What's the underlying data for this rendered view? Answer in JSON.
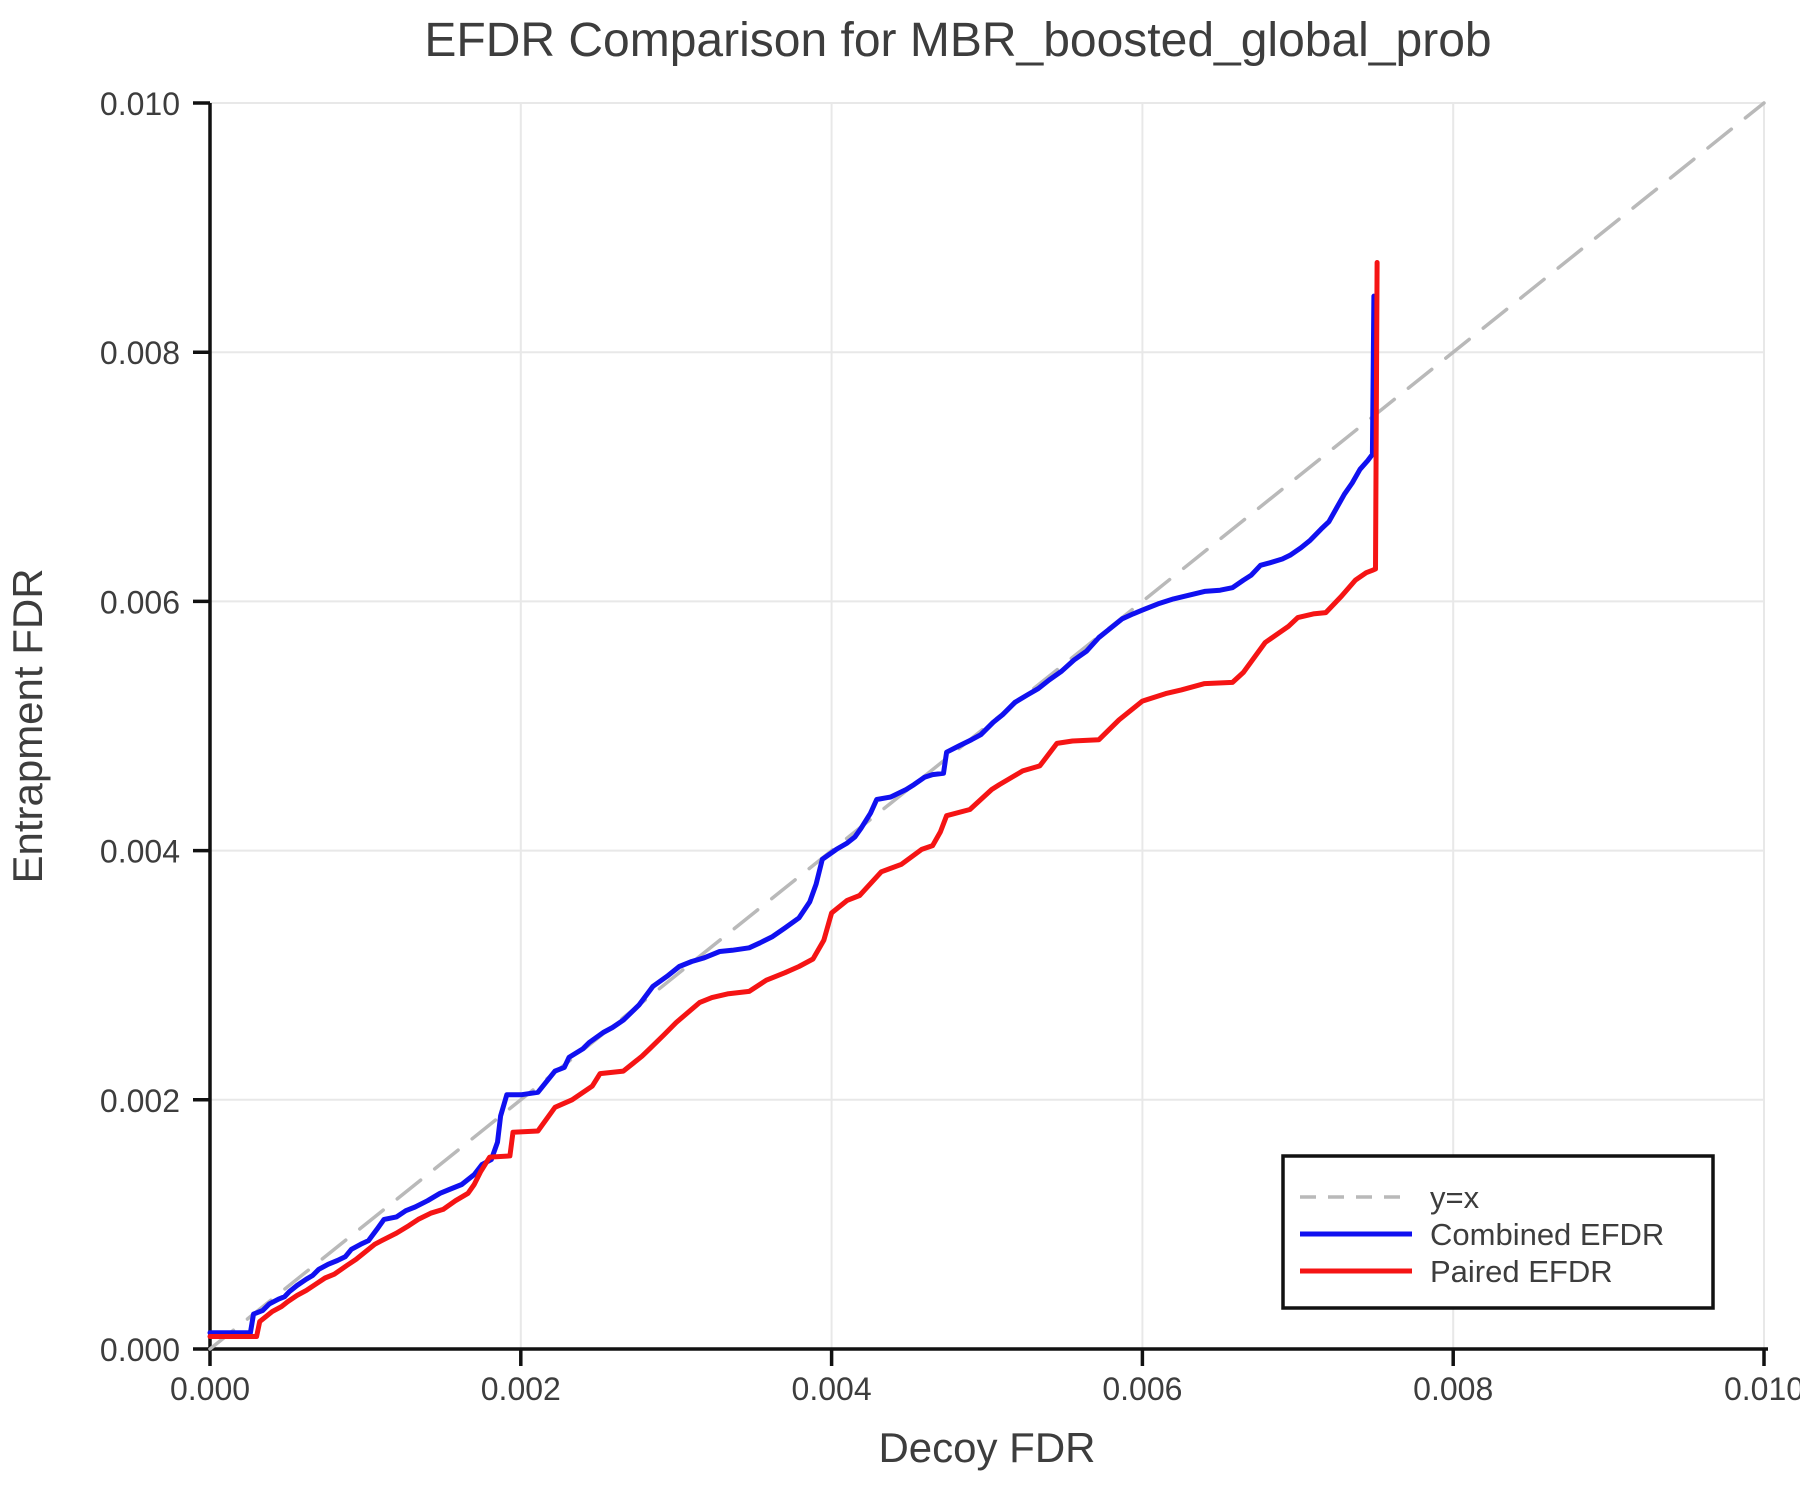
{
  "title": "EFDR Comparison for MBR_boosted_global_prob",
  "axes": {
    "xlabel": "Decoy FDR",
    "ylabel": "Entrapment FDR",
    "xtick_labels": [
      "0.000",
      "0.002",
      "0.004",
      "0.006",
      "0.008",
      "0.010"
    ],
    "ytick_labels": [
      "0.000",
      "0.002",
      "0.004",
      "0.006",
      "0.008",
      "0.010"
    ]
  },
  "legend": {
    "items": [
      {
        "label": "y=x",
        "color": "#b9b9b9",
        "dashed": true
      },
      {
        "label": "Combined EFDR",
        "color": "#1010f0",
        "dashed": false
      },
      {
        "label": "Paired EFDR",
        "color": "#f51414",
        "dashed": false
      }
    ]
  },
  "colors": {
    "grid": "#e8e8e8",
    "spine": "#111111",
    "text": "#3d3d3d",
    "identity_line": "#b9b9b9",
    "combined": "#1010f0",
    "paired": "#f51414"
  },
  "chart_data": {
    "type": "line",
    "title": "EFDR Comparison for MBR_boosted_global_prob",
    "xlabel": "Decoy FDR",
    "ylabel": "Entrapment FDR",
    "xlim": [
      0.0,
      0.01
    ],
    "ylim": [
      0.0,
      0.01
    ],
    "xticks": [
      0.0,
      0.002,
      0.004,
      0.006,
      0.008,
      0.01
    ],
    "yticks": [
      0.0,
      0.002,
      0.004,
      0.006,
      0.008,
      0.01
    ],
    "grid": true,
    "legend_position": "lower right",
    "points_scale": 0.0001,
    "series": [
      {
        "name": "y=x",
        "color": "#b9b9b9",
        "style": "dashed",
        "points": [
          [
            0,
            0
          ],
          [
            100,
            100
          ]
        ]
      },
      {
        "name": "Combined EFDR",
        "color": "#1010f0",
        "style": "solid",
        "points": [
          [
            0,
            1.3
          ],
          [
            2.6,
            1.3
          ],
          [
            2.8,
            2.8
          ],
          [
            3.4,
            3.1
          ],
          [
            3.8,
            3.6
          ],
          [
            4.4,
            4.0
          ],
          [
            4.8,
            4.2
          ],
          [
            5.1,
            4.6
          ],
          [
            5.6,
            5.1
          ],
          [
            6.2,
            5.6
          ],
          [
            6.6,
            5.9
          ],
          [
            7.0,
            6.4
          ],
          [
            7.6,
            6.8
          ],
          [
            8.2,
            7.1
          ],
          [
            8.7,
            7.4
          ],
          [
            9.1,
            8.0
          ],
          [
            9.7,
            8.4
          ],
          [
            10.2,
            8.7
          ],
          [
            10.8,
            9.7
          ],
          [
            11.2,
            10.4
          ],
          [
            12.0,
            10.6
          ],
          [
            12.6,
            11.1
          ],
          [
            13.2,
            11.4
          ],
          [
            14.0,
            11.9
          ],
          [
            14.8,
            12.5
          ],
          [
            15.4,
            12.8
          ],
          [
            16.2,
            13.2
          ],
          [
            17.0,
            14.0
          ],
          [
            17.5,
            14.8
          ],
          [
            18.1,
            15.2
          ],
          [
            18.5,
            16.6
          ],
          [
            18.7,
            18.7
          ],
          [
            19.1,
            20.4
          ],
          [
            20.0,
            20.4
          ],
          [
            21.1,
            20.6
          ],
          [
            22.2,
            22.3
          ],
          [
            22.8,
            22.6
          ],
          [
            23.1,
            23.4
          ],
          [
            24.0,
            24.1
          ],
          [
            24.4,
            24.6
          ],
          [
            25.3,
            25.4
          ],
          [
            25.9,
            25.8
          ],
          [
            26.6,
            26.4
          ],
          [
            27.6,
            27.6
          ],
          [
            28.5,
            29.1
          ],
          [
            29.4,
            29.9
          ],
          [
            30.2,
            30.7
          ],
          [
            31.0,
            31.1
          ],
          [
            31.8,
            31.4
          ],
          [
            32.8,
            31.9
          ],
          [
            33.6,
            32.0
          ],
          [
            34.7,
            32.2
          ],
          [
            35.4,
            32.6
          ],
          [
            36.2,
            33.1
          ],
          [
            37.0,
            33.8
          ],
          [
            37.9,
            34.6
          ],
          [
            38.6,
            35.9
          ],
          [
            39.0,
            37.3
          ],
          [
            39.4,
            39.3
          ],
          [
            40.3,
            40.1
          ],
          [
            41.0,
            40.6
          ],
          [
            41.5,
            41.1
          ],
          [
            41.9,
            41.8
          ],
          [
            42.5,
            43.0
          ],
          [
            42.9,
            44.1
          ],
          [
            43.8,
            44.3
          ],
          [
            44.8,
            44.9
          ],
          [
            45.3,
            45.3
          ],
          [
            46.0,
            45.9
          ],
          [
            46.5,
            46.1
          ],
          [
            47.2,
            46.2
          ],
          [
            47.4,
            47.9
          ],
          [
            48.2,
            48.4
          ],
          [
            49.0,
            48.9
          ],
          [
            49.6,
            49.3
          ],
          [
            50.4,
            50.3
          ],
          [
            51.0,
            50.9
          ],
          [
            51.8,
            51.9
          ],
          [
            52.6,
            52.5
          ],
          [
            53.3,
            53.0
          ],
          [
            54.0,
            53.7
          ],
          [
            54.8,
            54.4
          ],
          [
            55.6,
            55.3
          ],
          [
            56.4,
            56.0
          ],
          [
            57.2,
            57.1
          ],
          [
            58.0,
            57.9
          ],
          [
            58.7,
            58.6
          ],
          [
            59.4,
            59.0
          ],
          [
            60.0,
            59.3
          ],
          [
            61.0,
            59.8
          ],
          [
            62.0,
            60.2
          ],
          [
            63.0,
            60.5
          ],
          [
            64.0,
            60.8
          ],
          [
            65.0,
            60.9
          ],
          [
            65.8,
            61.1
          ],
          [
            66.5,
            61.7
          ],
          [
            67.0,
            62.1
          ],
          [
            67.6,
            62.9
          ],
          [
            68.2,
            63.1
          ],
          [
            69.0,
            63.4
          ],
          [
            69.5,
            63.7
          ],
          [
            70.2,
            64.3
          ],
          [
            70.8,
            64.9
          ],
          [
            71.5,
            65.8
          ],
          [
            72.0,
            66.4
          ],
          [
            72.5,
            67.5
          ],
          [
            73.0,
            68.6
          ],
          [
            73.5,
            69.5
          ],
          [
            74.0,
            70.6
          ],
          [
            74.5,
            71.3
          ],
          [
            74.8,
            71.8
          ],
          [
            74.9,
            84.5
          ]
        ]
      },
      {
        "name": "Paired EFDR",
        "color": "#f51414",
        "style": "solid",
        "points": [
          [
            0,
            1.0
          ],
          [
            3.0,
            1.0
          ],
          [
            3.2,
            2.2
          ],
          [
            4.0,
            3.0
          ],
          [
            4.6,
            3.4
          ],
          [
            5.0,
            3.8
          ],
          [
            5.6,
            4.3
          ],
          [
            6.2,
            4.7
          ],
          [
            6.8,
            5.2
          ],
          [
            7.4,
            5.7
          ],
          [
            8.0,
            6.0
          ],
          [
            8.8,
            6.7
          ],
          [
            9.4,
            7.2
          ],
          [
            10.0,
            7.8
          ],
          [
            10.6,
            8.4
          ],
          [
            11.2,
            8.8
          ],
          [
            12.0,
            9.3
          ],
          [
            12.8,
            9.9
          ],
          [
            13.4,
            10.4
          ],
          [
            14.2,
            10.9
          ],
          [
            15.0,
            11.2
          ],
          [
            15.8,
            11.9
          ],
          [
            16.6,
            12.5
          ],
          [
            17.0,
            13.2
          ],
          [
            17.4,
            14.2
          ],
          [
            18.0,
            15.4
          ],
          [
            19.3,
            15.5
          ],
          [
            19.5,
            17.4
          ],
          [
            21.1,
            17.5
          ],
          [
            22.2,
            19.4
          ],
          [
            23.3,
            20.0
          ],
          [
            24.6,
            21.1
          ],
          [
            25.1,
            22.1
          ],
          [
            26.6,
            22.3
          ],
          [
            27.8,
            23.5
          ],
          [
            28.3,
            24.1
          ],
          [
            29.2,
            25.2
          ],
          [
            30.0,
            26.2
          ],
          [
            31.5,
            27.8
          ],
          [
            32.3,
            28.2
          ],
          [
            33.3,
            28.5
          ],
          [
            34.7,
            28.7
          ],
          [
            35.8,
            29.6
          ],
          [
            37.0,
            30.2
          ],
          [
            37.9,
            30.7
          ],
          [
            38.8,
            31.3
          ],
          [
            39.5,
            32.8
          ],
          [
            40.0,
            35.0
          ],
          [
            41.0,
            36.0
          ],
          [
            41.8,
            36.4
          ],
          [
            43.2,
            38.3
          ],
          [
            44.5,
            38.9
          ],
          [
            45.8,
            40.1
          ],
          [
            46.5,
            40.4
          ],
          [
            47.0,
            41.5
          ],
          [
            47.4,
            42.8
          ],
          [
            48.9,
            43.3
          ],
          [
            50.3,
            44.9
          ],
          [
            50.8,
            45.3
          ],
          [
            52.3,
            46.4
          ],
          [
            53.4,
            46.8
          ],
          [
            54.5,
            48.6
          ],
          [
            55.5,
            48.8
          ],
          [
            57.2,
            48.9
          ],
          [
            58.5,
            50.5
          ],
          [
            60.0,
            52.0
          ],
          [
            61.5,
            52.6
          ],
          [
            62.5,
            52.9
          ],
          [
            64.0,
            53.4
          ],
          [
            65.8,
            53.5
          ],
          [
            66.5,
            54.3
          ],
          [
            67.9,
            56.7
          ],
          [
            69.4,
            58.0
          ],
          [
            70.0,
            58.7
          ],
          [
            71.0,
            59.0
          ],
          [
            71.8,
            59.1
          ],
          [
            72.8,
            60.4
          ],
          [
            73.7,
            61.7
          ],
          [
            74.4,
            62.3
          ],
          [
            74.8,
            62.5
          ],
          [
            75.0,
            62.6
          ],
          [
            75.1,
            87.2
          ]
        ]
      }
    ]
  }
}
